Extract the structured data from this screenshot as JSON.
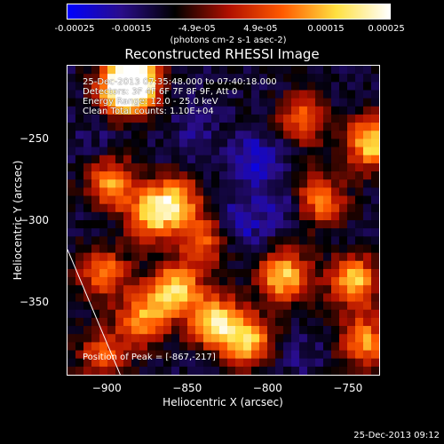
{
  "chart_data": {
    "type": "heatmap",
    "title": "Reconstructed RHESSI Image",
    "xlabel": "Heliocentric X (arcsec)",
    "ylabel": "Heliocentric Y (arcsec)",
    "xlim": [
      -925,
      -730
    ],
    "ylim": [
      -395,
      -205
    ],
    "x_ticks": [
      -900,
      -850,
      -800,
      -750
    ],
    "y_ticks": [
      -250,
      -300,
      -350
    ],
    "colorbar": {
      "min": -0.00025,
      "max": 0.00025,
      "tick_values": [
        -0.00025,
        -0.00015,
        -4.9e-05,
        4.9e-05,
        0.00015,
        0.00025
      ],
      "tick_labels": [
        "-0.00025",
        "-0.00015",
        "-4.9e-05",
        "4.9e-05",
        "0.00015",
        "0.00025"
      ],
      "units": "(photons cm-2 s-1 asec-2)",
      "colors": [
        "#0000ff",
        "#2a0d8a",
        "#000000",
        "#b01000",
        "#ff5a00",
        "#ffe040",
        "#ffffff"
      ]
    },
    "annotations": [
      "25-Dec-2013 07:35:48.000 to 07:40:18.000",
      "Detectors: 3F 4F 6F 7F 8F 9F, Att 0",
      "Energy Range: 12.0 - 25.0 keV",
      "Clean     Total counts: 1.10E+04"
    ],
    "peak_note": "Position of Peak = [-867,-217]",
    "limb_line": [
      [
        -925,
        -318
      ],
      [
        -892,
        -395
      ]
    ],
    "bright_sources": [
      {
        "x": -885,
        "y": -212,
        "value": 0.00025
      },
      {
        "x": -893,
        "y": -217,
        "value": 0.0002
      },
      {
        "x": -860,
        "y": -340,
        "value": 0.00018
      },
      {
        "x": -835,
        "y": -360,
        "value": 0.00019
      },
      {
        "x": -815,
        "y": -372,
        "value": 0.00015
      },
      {
        "x": -875,
        "y": -295,
        "value": 0.00014
      },
      {
        "x": -860,
        "y": -285,
        "value": 0.00013
      },
      {
        "x": -900,
        "y": -275,
        "value": 0.00012
      },
      {
        "x": -792,
        "y": -332,
        "value": 0.00017
      },
      {
        "x": -748,
        "y": -335,
        "value": 0.00016
      },
      {
        "x": -738,
        "y": -250,
        "value": 0.00018
      },
      {
        "x": -742,
        "y": -372,
        "value": 0.00012
      },
      {
        "x": -770,
        "y": -285,
        "value": 0.00011
      },
      {
        "x": -880,
        "y": -358,
        "value": 0.00012
      },
      {
        "x": -905,
        "y": -330,
        "value": 0.0001
      },
      {
        "x": -842,
        "y": -310,
        "value": 8e-05
      },
      {
        "x": -780,
        "y": -235,
        "value": 7e-05
      },
      {
        "x": -905,
        "y": -380,
        "value": 7e-05
      }
    ],
    "dark_regions": [
      {
        "x": -808,
        "y": -260,
        "value": -0.00022
      },
      {
        "x": -820,
        "y": -300,
        "value": -0.0002
      },
      {
        "x": -790,
        "y": -290,
        "value": -0.00018
      },
      {
        "x": -850,
        "y": -250,
        "value": -0.00016
      },
      {
        "x": -910,
        "y": -245,
        "value": -0.00014
      },
      {
        "x": -860,
        "y": -220,
        "value": -0.00013
      },
      {
        "x": -780,
        "y": -380,
        "value": -0.00015
      },
      {
        "x": -895,
        "y": -305,
        "value": -0.00012
      },
      {
        "x": -830,
        "y": -395,
        "value": -0.00012
      },
      {
        "x": -760,
        "y": -220,
        "value": -0.00012
      },
      {
        "x": -770,
        "y": -350,
        "value": -0.00011
      }
    ]
  },
  "timestamp": "25-Dec-2013 09:12"
}
